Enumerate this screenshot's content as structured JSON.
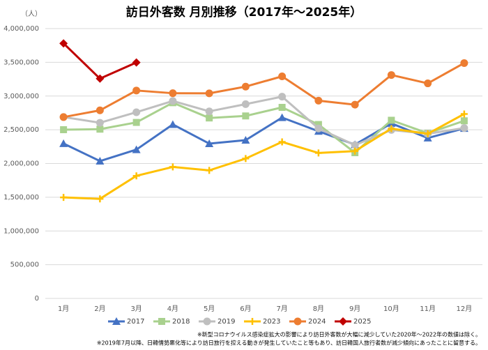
{
  "chart_data": {
    "type": "line",
    "title": "訪日外客数 月別推移（2017年～2025年）",
    "unit_label": "（人）",
    "notes": [
      "※新型コロナウイルス感染症拡大の影響により訪日外客数が大幅に減少していた2020年～2022年の数値は除く。",
      "※2019年7月以降、日韓情勢悪化等により訪日旅行を控える動きが発生していたこと等もあり、訪日韓国人旅行者数が減少傾向にあったことに留意する。"
    ],
    "categories": [
      "1月",
      "2月",
      "3月",
      "4月",
      "5月",
      "6月",
      "7月",
      "8月",
      "9月",
      "10月",
      "11月",
      "12月"
    ],
    "series": [
      {
        "name": "2017",
        "color": "#4472c4",
        "marker": "triangle",
        "values": [
          2296000,
          2036000,
          2206000,
          2579000,
          2295000,
          2346000,
          2681000,
          2478000,
          2280000,
          2595000,
          2378000,
          2521000
        ]
      },
      {
        "name": "2018",
        "color": "#a9d18e",
        "marker": "square",
        "values": [
          2501000,
          2509000,
          2609000,
          2901000,
          2675000,
          2705000,
          2832000,
          2578000,
          2160000,
          2641000,
          2449000,
          2633000
        ]
      },
      {
        "name": "2019",
        "color": "#bfbfbf",
        "marker": "circle",
        "values": [
          2689000,
          2604000,
          2760000,
          2927000,
          2773000,
          2880000,
          2991000,
          2520000,
          2273000,
          2497000,
          2441000,
          2526000
        ]
      },
      {
        "name": "2023",
        "color": "#ffc000",
        "marker": "plus",
        "values": [
          1497000,
          1476000,
          1817000,
          1949000,
          1898000,
          2073000,
          2320000,
          2156000,
          2184000,
          2517000,
          2441000,
          2734000
        ]
      },
      {
        "name": "2024",
        "color": "#ed7d31",
        "marker": "circle",
        "values": [
          2688000,
          2788000,
          3082000,
          3042000,
          3040000,
          3140000,
          3292000,
          2932000,
          2872000,
          3312000,
          3188000,
          3489000
        ]
      },
      {
        "name": "2025",
        "color": "#c00000",
        "marker": "diamond",
        "values": [
          3781000,
          3258000,
          3498000,
          null,
          null,
          null,
          null,
          null,
          null,
          null,
          null,
          null
        ]
      }
    ],
    "ylim": [
      0,
      4000000
    ],
    "yticks": [
      0,
      {
        "value": 500000,
        "label": "500,000"
      },
      {
        "value": 1000000,
        "label": "1,000,000"
      },
      {
        "value": 1500000,
        "label": "1,500,000"
      },
      {
        "value": 2000000,
        "label": "2,000,000"
      },
      {
        "value": 2500000,
        "label": "2,500,000"
      },
      {
        "value": 3000000,
        "label": "3,000,000"
      },
      {
        "value": 3500000,
        "label": "3,500,000"
      },
      {
        "value": 4000000,
        "label": "4,000,000"
      }
    ],
    "grid": true,
    "legend": "bottom"
  }
}
